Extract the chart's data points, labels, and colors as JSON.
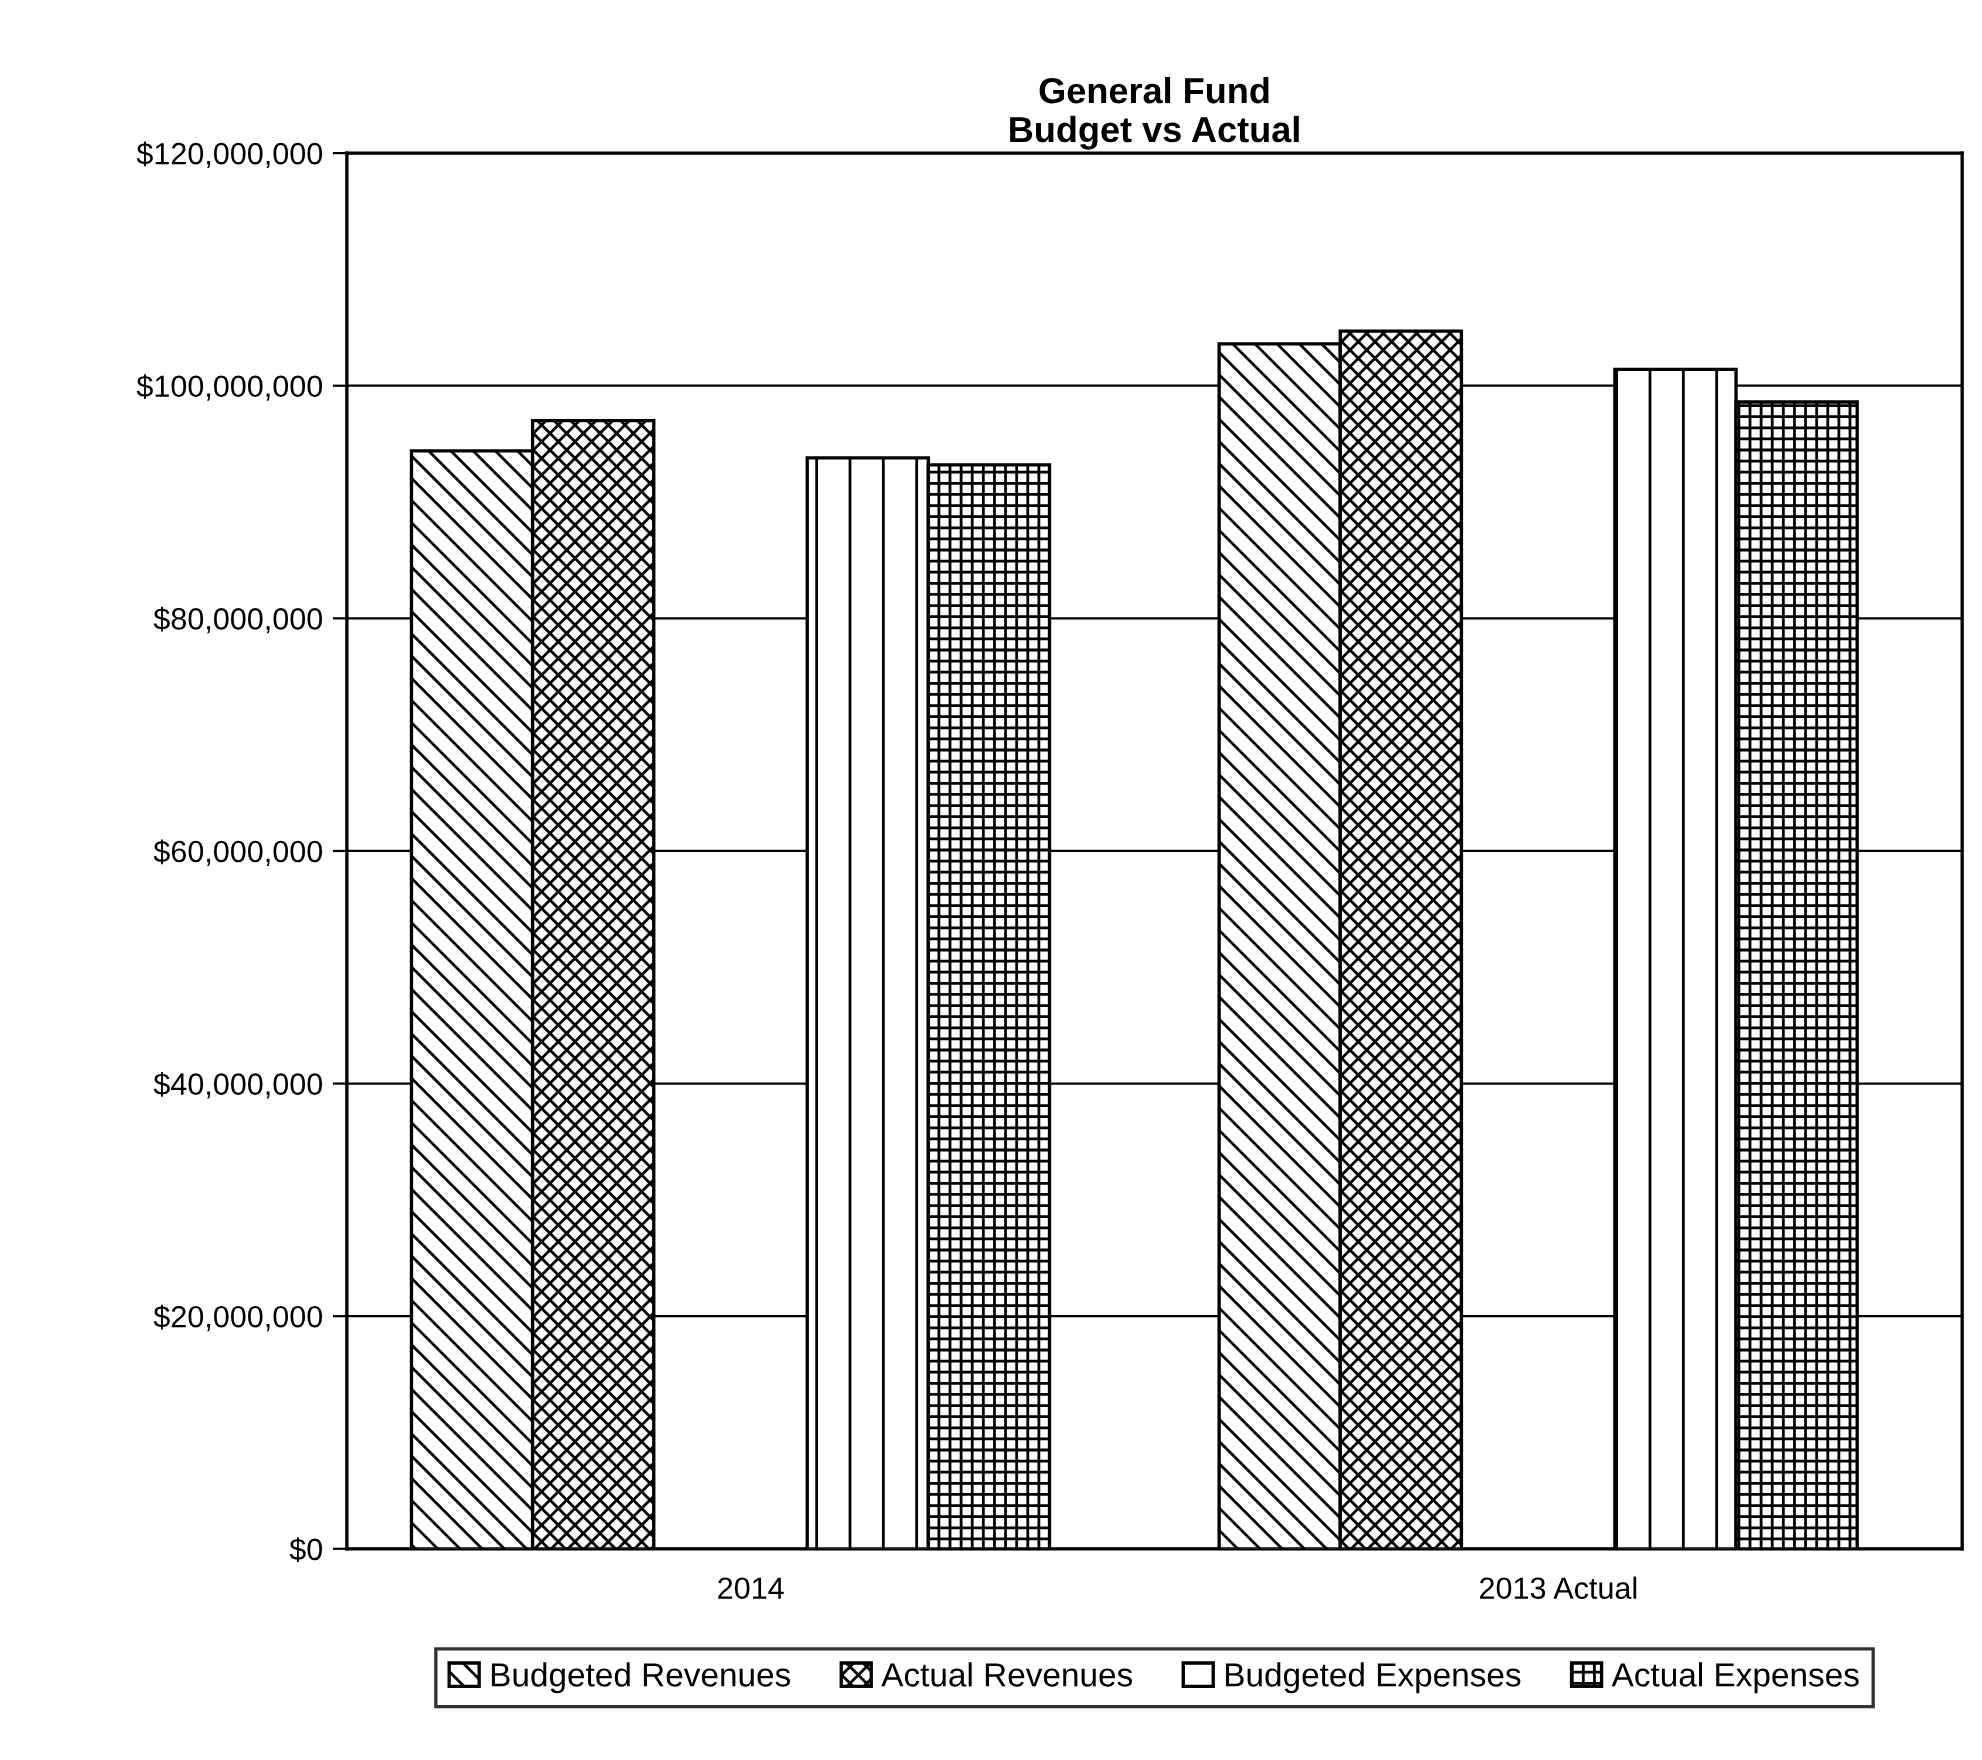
{
  "chart_data": {
    "type": "bar",
    "title": "General Fund\nBudget vs Actual",
    "categories": [
      "2014",
      "2013 Actual"
    ],
    "series": [
      {
        "name": "Budgeted Revenues",
        "color": "#000000",
        "values": [
          94400000,
          103600000
        ]
      },
      {
        "name": "Actual Revenues",
        "color": "#000000",
        "values": [
          97000000,
          104700000
        ]
      },
      {
        "name": "Budgeted Expenses",
        "color": "#000000",
        "values": [
          93800000,
          101400000
        ]
      },
      {
        "name": "Actual Expenses",
        "color": "#000000",
        "values": [
          93200000,
          98600000
        ]
      }
    ],
    "ylim": [
      0,
      120000000
    ],
    "yticks": [
      {
        "value": 0,
        "label": "$0"
      },
      {
        "value": 20000000,
        "label": "$20,000,000"
      },
      {
        "value": 40000000,
        "label": "$40,000,000"
      },
      {
        "value": 60000000,
        "label": "$60,000,000"
      },
      {
        "value": 80000000,
        "label": "$80,000,000"
      },
      {
        "value": 100000000,
        "label": "$100,000,000"
      },
      {
        "value": 120000000,
        "label": "$120,000,000"
      }
    ],
    "grid": "y",
    "legend": "bottom"
  }
}
